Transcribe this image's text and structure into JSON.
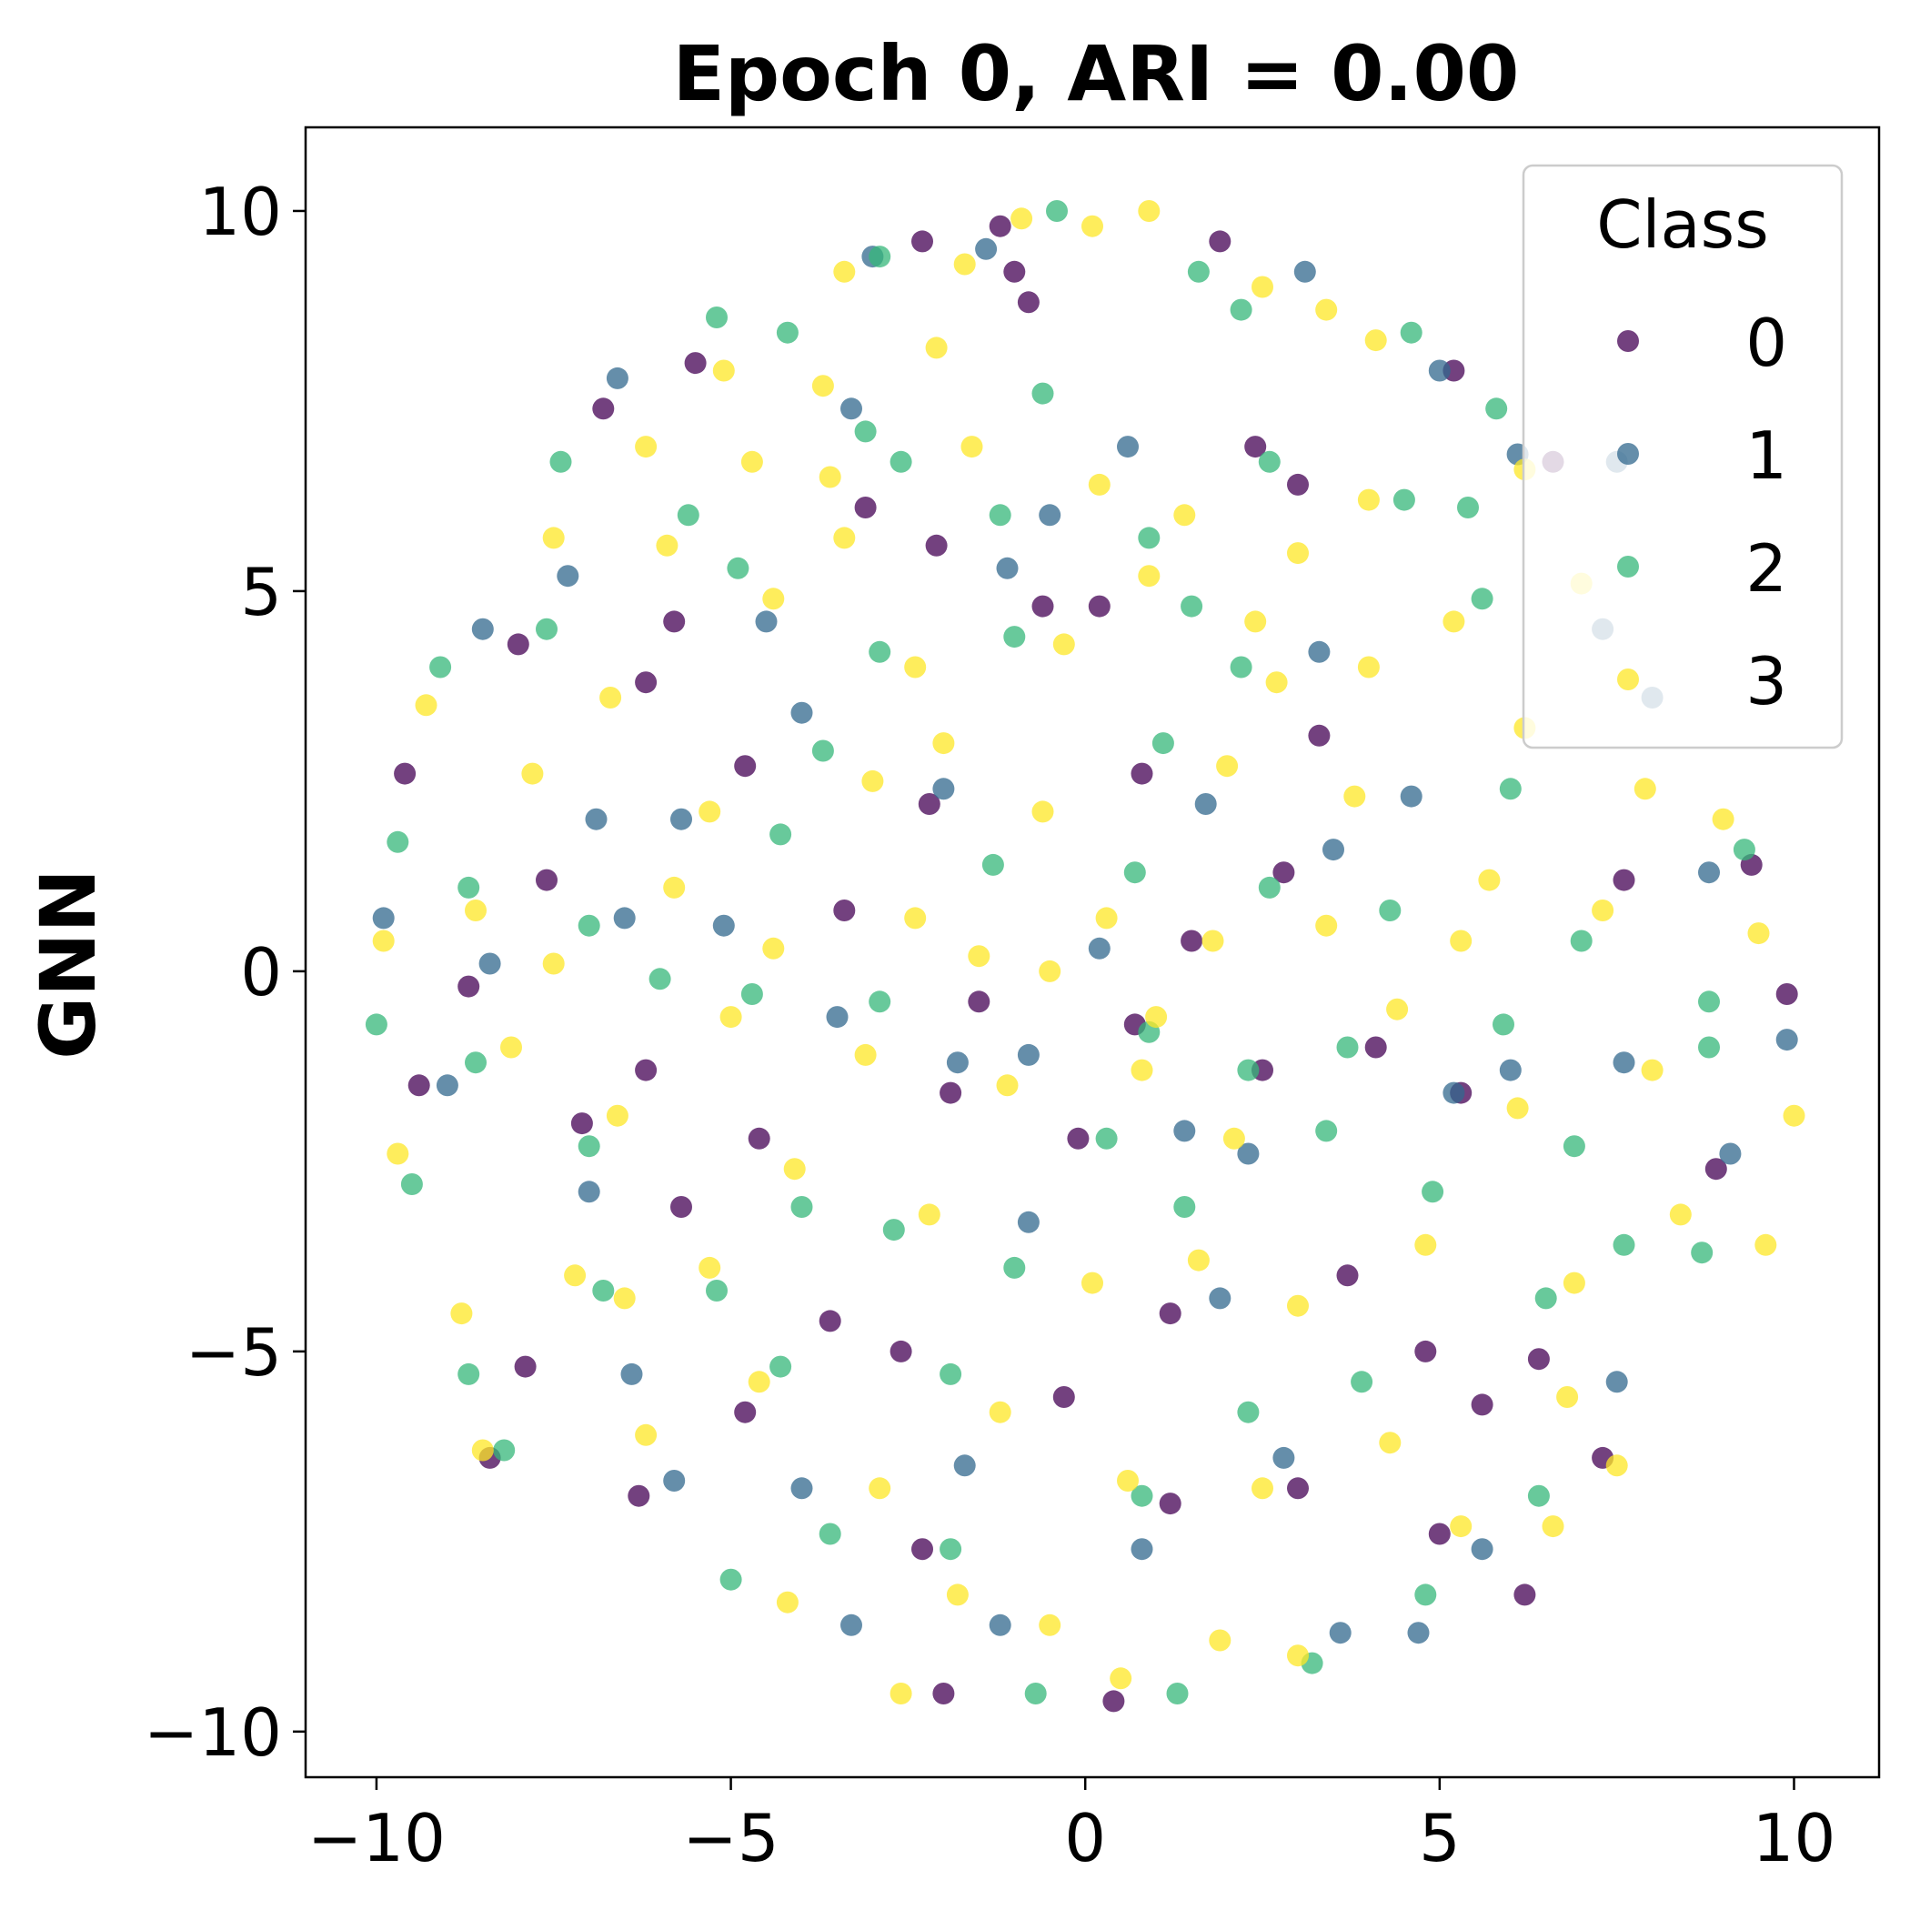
{
  "chart_data": {
    "type": "scatter",
    "title": "Epoch 0,  ARI = 0.00",
    "xlabel": "",
    "ylabel": "GNN",
    "xlim": [
      -11.0,
      11.2
    ],
    "ylim": [
      -10.6,
      11.1
    ],
    "xticks": [
      -10,
      -5,
      0,
      5,
      10
    ],
    "yticks": [
      -10,
      -5,
      0,
      5,
      10
    ],
    "xtick_labels": [
      "−10",
      "−5",
      "0",
      "5",
      "10"
    ],
    "ytick_labels": [
      "−10",
      "−5",
      "0",
      "5",
      "10"
    ],
    "grid": false,
    "marker_alpha": 0.75,
    "legend": {
      "title": "Class",
      "placement": "upper right"
    },
    "series": [
      {
        "name": "0",
        "color": "#440154",
        "points": [
          [
            -1.2,
            9.8
          ],
          [
            -0.8,
            8.8
          ],
          [
            -2.3,
            9.6
          ],
          [
            -1.0,
            9.2
          ],
          [
            -5.5,
            8.0
          ],
          [
            -6.8,
            7.4
          ],
          [
            -3.1,
            6.1
          ],
          [
            -2.1,
            5.6
          ],
          [
            -5.8,
            4.6
          ],
          [
            -8.0,
            4.3
          ],
          [
            -9.6,
            2.6
          ],
          [
            -4.8,
            2.7
          ],
          [
            -7.6,
            1.2
          ],
          [
            -0.6,
            4.8
          ],
          [
            0.8,
            2.6
          ],
          [
            2.4,
            6.9
          ],
          [
            3.0,
            6.4
          ],
          [
            2.8,
            1.3
          ],
          [
            3.3,
            3.1
          ],
          [
            -3.4,
            0.8
          ],
          [
            -1.5,
            -0.4
          ],
          [
            -1.9,
            -1.6
          ],
          [
            -8.7,
            -0.2
          ],
          [
            -9.4,
            -1.5
          ],
          [
            -7.1,
            -2.0
          ],
          [
            -6.2,
            -1.3
          ],
          [
            -5.7,
            -3.1
          ],
          [
            -4.6,
            -2.2
          ],
          [
            -2.6,
            -5.0
          ],
          [
            -7.9,
            -5.2
          ],
          [
            -8.4,
            -6.4
          ],
          [
            -6.3,
            -6.9
          ],
          [
            -2.3,
            -7.6
          ],
          [
            -2.0,
            -9.5
          ],
          [
            0.4,
            -9.6
          ],
          [
            -0.3,
            -5.6
          ],
          [
            1.2,
            -4.5
          ],
          [
            3.0,
            -6.8
          ],
          [
            4.8,
            -5.0
          ],
          [
            5.0,
            -7.4
          ],
          [
            5.6,
            -5.7
          ],
          [
            6.4,
            -5.1
          ],
          [
            7.3,
            -6.4
          ],
          [
            8.9,
            -2.6
          ],
          [
            9.4,
            1.4
          ],
          [
            9.9,
            -0.3
          ],
          [
            7.6,
            1.2
          ],
          [
            4.1,
            -1.0
          ],
          [
            5.3,
            -1.6
          ],
          [
            1.5,
            0.4
          ],
          [
            0.7,
            -0.7
          ],
          [
            -0.1,
            -2.2
          ],
          [
            -2.2,
            2.2
          ],
          [
            -6.2,
            3.8
          ],
          [
            0.2,
            4.8
          ],
          [
            6.6,
            6.7
          ],
          [
            5.2,
            7.9
          ],
          [
            1.9,
            9.6
          ],
          [
            -4.8,
            -5.8
          ],
          [
            1.2,
            -7.0
          ],
          [
            3.7,
            -4.0
          ],
          [
            2.5,
            -1.3
          ],
          [
            6.2,
            -8.2
          ],
          [
            -3.6,
            -4.6
          ]
        ]
      },
      {
        "name": "1",
        "color": "#31688e",
        "points": [
          [
            -3.0,
            9.4
          ],
          [
            -1.4,
            9.5
          ],
          [
            3.1,
            9.2
          ],
          [
            -6.6,
            7.8
          ],
          [
            -3.3,
            7.4
          ],
          [
            -0.5,
            6.0
          ],
          [
            0.6,
            6.9
          ],
          [
            5.0,
            7.9
          ],
          [
            6.1,
            6.8
          ],
          [
            7.5,
            6.7
          ],
          [
            -8.5,
            4.5
          ],
          [
            -6.9,
            2.0
          ],
          [
            -5.7,
            2.0
          ],
          [
            -4.0,
            3.4
          ],
          [
            -1.1,
            5.3
          ],
          [
            1.7,
            2.2
          ],
          [
            3.3,
            4.2
          ],
          [
            7.3,
            4.5
          ],
          [
            8.0,
            3.6
          ],
          [
            -9.9,
            0.7
          ],
          [
            -8.4,
            0.1
          ],
          [
            -6.5,
            0.7
          ],
          [
            -5.1,
            0.6
          ],
          [
            -3.5,
            -0.6
          ],
          [
            -1.8,
            -1.2
          ],
          [
            -0.8,
            -1.1
          ],
          [
            1.4,
            -2.1
          ],
          [
            2.3,
            -2.4
          ],
          [
            5.2,
            -1.6
          ],
          [
            7.6,
            -1.2
          ],
          [
            9.9,
            -0.9
          ],
          [
            -9.0,
            -1.5
          ],
          [
            -7.0,
            -2.9
          ],
          [
            -6.4,
            -5.3
          ],
          [
            -5.8,
            -6.7
          ],
          [
            -4.0,
            -6.8
          ],
          [
            -1.7,
            -6.5
          ],
          [
            -0.8,
            -3.3
          ],
          [
            1.9,
            -4.3
          ],
          [
            2.8,
            -6.4
          ],
          [
            4.7,
            -8.7
          ],
          [
            5.6,
            -7.6
          ],
          [
            7.5,
            -5.4
          ],
          [
            9.1,
            -2.4
          ],
          [
            -3.3,
            -8.6
          ],
          [
            -1.2,
            -8.6
          ],
          [
            0.8,
            -7.6
          ],
          [
            3.6,
            -8.7
          ],
          [
            6.0,
            -1.3
          ],
          [
            3.5,
            1.6
          ],
          [
            0.2,
            0.3
          ],
          [
            -2.0,
            2.4
          ],
          [
            -4.5,
            4.6
          ],
          [
            8.8,
            1.3
          ],
          [
            -7.3,
            5.2
          ],
          [
            4.6,
            2.3
          ]
        ]
      },
      {
        "name": "2",
        "color": "#35b779",
        "points": [
          [
            -2.9,
            9.4
          ],
          [
            -0.4,
            10.0
          ],
          [
            1.6,
            9.2
          ],
          [
            2.2,
            8.7
          ],
          [
            -5.2,
            8.6
          ],
          [
            -4.2,
            8.4
          ],
          [
            -3.1,
            7.1
          ],
          [
            -0.6,
            7.6
          ],
          [
            4.6,
            8.4
          ],
          [
            5.8,
            7.4
          ],
          [
            -7.4,
            6.7
          ],
          [
            -5.6,
            6.0
          ],
          [
            -2.6,
            6.7
          ],
          [
            -1.2,
            6.0
          ],
          [
            0.9,
            5.7
          ],
          [
            2.6,
            6.7
          ],
          [
            4.5,
            6.2
          ],
          [
            5.4,
            6.1
          ],
          [
            -9.1,
            4.0
          ],
          [
            -7.6,
            4.5
          ],
          [
            -4.9,
            5.3
          ],
          [
            -2.9,
            4.2
          ],
          [
            -1.0,
            4.4
          ],
          [
            1.5,
            4.8
          ],
          [
            2.2,
            4.0
          ],
          [
            5.6,
            4.9
          ],
          [
            6.0,
            2.4
          ],
          [
            -9.7,
            1.7
          ],
          [
            -8.7,
            1.1
          ],
          [
            -7.0,
            0.6
          ],
          [
            -4.3,
            1.8
          ],
          [
            -1.3,
            1.4
          ],
          [
            0.7,
            1.3
          ],
          [
            2.6,
            1.1
          ],
          [
            4.3,
            0.8
          ],
          [
            7.0,
            0.4
          ],
          [
            9.3,
            1.6
          ],
          [
            -10.0,
            -0.7
          ],
          [
            -8.6,
            -1.2
          ],
          [
            -6.0,
            -0.1
          ],
          [
            -4.7,
            -0.3
          ],
          [
            -2.9,
            -0.4
          ],
          [
            0.9,
            -0.8
          ],
          [
            2.3,
            -1.3
          ],
          [
            3.7,
            -1.0
          ],
          [
            5.9,
            -0.7
          ],
          [
            8.8,
            -1.0
          ],
          [
            -9.5,
            -2.8
          ],
          [
            -7.0,
            -2.3
          ],
          [
            -5.2,
            -4.2
          ],
          [
            -4.0,
            -3.1
          ],
          [
            -2.7,
            -3.4
          ],
          [
            -1.0,
            -3.9
          ],
          [
            1.4,
            -3.1
          ],
          [
            3.4,
            -2.1
          ],
          [
            4.9,
            -2.9
          ],
          [
            6.9,
            -2.3
          ],
          [
            8.7,
            -3.7
          ],
          [
            -8.7,
            -5.3
          ],
          [
            -6.8,
            -4.2
          ],
          [
            -4.3,
            -5.2
          ],
          [
            -1.9,
            -5.3
          ],
          [
            0.8,
            -6.9
          ],
          [
            2.3,
            -5.8
          ],
          [
            3.9,
            -5.4
          ],
          [
            6.5,
            -4.3
          ],
          [
            7.6,
            -3.6
          ],
          [
            -5.0,
            -8.0
          ],
          [
            -3.6,
            -7.4
          ],
          [
            -1.9,
            -7.6
          ],
          [
            -0.7,
            -9.5
          ],
          [
            1.3,
            -9.5
          ],
          [
            3.2,
            -9.1
          ],
          [
            4.8,
            -8.2
          ],
          [
            6.4,
            -6.9
          ],
          [
            -8.2,
            -6.3
          ],
          [
            0.3,
            -2.2
          ],
          [
            -3.7,
            2.9
          ],
          [
            1.1,
            3.0
          ],
          [
            8.8,
            -0.4
          ]
        ]
      },
      {
        "name": "3",
        "color": "#fde725",
        "points": [
          [
            -3.4,
            9.2
          ],
          [
            -2.1,
            8.2
          ],
          [
            -1.7,
            9.3
          ],
          [
            -0.9,
            9.9
          ],
          [
            0.1,
            9.8
          ],
          [
            0.9,
            10.0
          ],
          [
            2.5,
            9.0
          ],
          [
            3.4,
            8.7
          ],
          [
            4.1,
            8.3
          ],
          [
            -5.1,
            7.9
          ],
          [
            -3.7,
            7.7
          ],
          [
            -6.2,
            6.9
          ],
          [
            -4.7,
            6.7
          ],
          [
            -3.6,
            6.5
          ],
          [
            -1.6,
            6.9
          ],
          [
            0.2,
            6.4
          ],
          [
            1.4,
            6.0
          ],
          [
            3.0,
            5.5
          ],
          [
            4.0,
            6.2
          ],
          [
            6.2,
            6.6
          ],
          [
            -7.5,
            5.7
          ],
          [
            -5.9,
            5.6
          ],
          [
            -4.4,
            4.9
          ],
          [
            -3.4,
            5.7
          ],
          [
            -2.4,
            4.0
          ],
          [
            -0.3,
            4.3
          ],
          [
            0.9,
            5.2
          ],
          [
            2.4,
            4.6
          ],
          [
            4.0,
            4.0
          ],
          [
            5.2,
            4.6
          ],
          [
            7.0,
            5.1
          ],
          [
            -9.3,
            3.5
          ],
          [
            -7.8,
            2.6
          ],
          [
            -6.7,
            3.6
          ],
          [
            -5.3,
            2.1
          ],
          [
            -3.0,
            2.5
          ],
          [
            -2.0,
            3.0
          ],
          [
            -0.6,
            2.1
          ],
          [
            2.0,
            2.7
          ],
          [
            3.8,
            2.3
          ],
          [
            6.2,
            3.2
          ],
          [
            7.9,
            2.4
          ],
          [
            9.0,
            2.0
          ],
          [
            -9.9,
            0.4
          ],
          [
            -8.6,
            0.8
          ],
          [
            -7.5,
            0.1
          ],
          [
            -5.8,
            1.1
          ],
          [
            -4.4,
            0.3
          ],
          [
            -2.4,
            0.7
          ],
          [
            -1.5,
            0.2
          ],
          [
            0.3,
            0.7
          ],
          [
            1.8,
            0.4
          ],
          [
            3.4,
            0.6
          ],
          [
            5.3,
            0.4
          ],
          [
            7.3,
            0.8
          ],
          [
            9.5,
            0.5
          ],
          [
            -9.7,
            -2.4
          ],
          [
            -8.1,
            -1.0
          ],
          [
            -6.6,
            -1.9
          ],
          [
            -5.0,
            -0.6
          ],
          [
            -3.1,
            -1.1
          ],
          [
            -1.1,
            -1.5
          ],
          [
            0.8,
            -1.3
          ],
          [
            2.1,
            -2.2
          ],
          [
            4.4,
            -0.5
          ],
          [
            6.1,
            -1.8
          ],
          [
            8.0,
            -1.3
          ],
          [
            10.0,
            -1.9
          ],
          [
            -8.8,
            -4.5
          ],
          [
            -7.2,
            -4.0
          ],
          [
            -5.3,
            -3.9
          ],
          [
            -4.1,
            -2.6
          ],
          [
            -2.2,
            -3.2
          ],
          [
            0.1,
            -4.1
          ],
          [
            1.6,
            -3.8
          ],
          [
            3.0,
            -4.4
          ],
          [
            4.8,
            -3.6
          ],
          [
            6.9,
            -4.1
          ],
          [
            8.4,
            -3.2
          ],
          [
            9.6,
            -3.6
          ],
          [
            -8.5,
            -6.3
          ],
          [
            -6.2,
            -6.1
          ],
          [
            -4.6,
            -5.4
          ],
          [
            -2.9,
            -6.8
          ],
          [
            -1.2,
            -5.8
          ],
          [
            0.6,
            -6.7
          ],
          [
            2.5,
            -6.8
          ],
          [
            4.3,
            -6.2
          ],
          [
            6.8,
            -5.6
          ],
          [
            7.5,
            -6.5
          ],
          [
            -4.2,
            -8.3
          ],
          [
            -2.6,
            -9.5
          ],
          [
            -1.8,
            -8.2
          ],
          [
            -0.5,
            -8.6
          ],
          [
            0.5,
            -9.3
          ],
          [
            1.9,
            -8.8
          ],
          [
            3.0,
            -9.0
          ],
          [
            5.3,
            -7.3
          ],
          [
            6.6,
            -7.3
          ],
          [
            -6.5,
            -4.3
          ],
          [
            -0.5,
            0.0
          ],
          [
            1.0,
            -0.6
          ],
          [
            2.7,
            3.8
          ],
          [
            5.7,
            1.2
          ]
        ]
      }
    ]
  }
}
